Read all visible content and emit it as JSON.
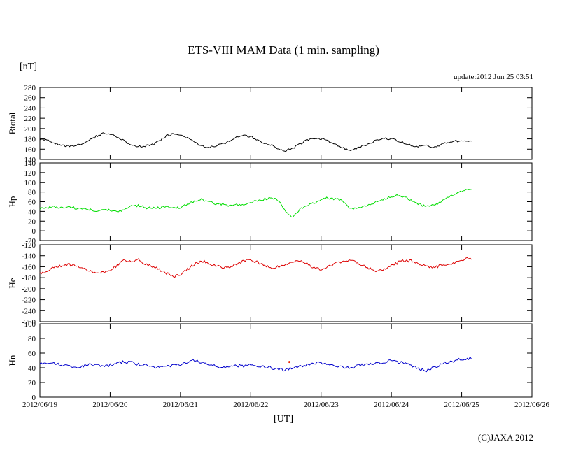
{
  "chart_data": {
    "type": "line",
    "title": "ETS-VIII MAM Data (1 min. sampling)",
    "unit_label": "[nT]",
    "update_label": "update:2012 Jun 25 03:51",
    "xlabel": "[UT]",
    "copyright": "(C)JAXA 2012",
    "x_tick_labels": [
      "2012/06/19",
      "2012/06/20",
      "2012/06/21",
      "2012/06/22",
      "2012/06/23",
      "2012/06/24",
      "2012/06/25",
      "2012/06/26"
    ],
    "x_range_days": [
      0,
      7
    ],
    "data_end_day": 6.15,
    "sample_step_days": 0.1,
    "legend": "off",
    "grid": "off",
    "panels": [
      {
        "name": "Btotal",
        "color": "#000000",
        "ylim": [
          140,
          280
        ],
        "ytick_step": 20,
        "noise": 2.0,
        "values": [
          180,
          177,
          172,
          168,
          166,
          167,
          170,
          176,
          185,
          190,
          189,
          184,
          176,
          168,
          165,
          166,
          169,
          175,
          186,
          190,
          187,
          181,
          173,
          167,
          164,
          166,
          170,
          176,
          184,
          187,
          184,
          178,
          172,
          168,
          160,
          157,
          162,
          170,
          178,
          181,
          180,
          176,
          170,
          163,
          158,
          161,
          166,
          172,
          178,
          181,
          180,
          176,
          171,
          167,
          165,
          166,
          164,
          168,
          173,
          176,
          175,
          176
        ]
      },
      {
        "name": "Hp",
        "color": "#00dd00",
        "ylim": [
          -20,
          140
        ],
        "ytick_step": 20,
        "noise": 2.5,
        "values": [
          45,
          48,
          50,
          48,
          50,
          47,
          45,
          44,
          42,
          44,
          42,
          40,
          44,
          50,
          52,
          48,
          46,
          48,
          50,
          46,
          48,
          55,
          62,
          65,
          60,
          56,
          55,
          52,
          55,
          53,
          58,
          62,
          66,
          68,
          62,
          40,
          28,
          45,
          52,
          58,
          64,
          68,
          66,
          62,
          45,
          48,
          50,
          55,
          60,
          65,
          70,
          73,
          70,
          62,
          55,
          50,
          53,
          60,
          68,
          75,
          82,
          85
        ]
      },
      {
        "name": "He",
        "color": "#dd0000",
        "ylim": [
          -260,
          -120
        ],
        "ytick_step": 20,
        "noise": 2.5,
        "values": [
          -172,
          -168,
          -162,
          -158,
          -156,
          -158,
          -162,
          -168,
          -172,
          -170,
          -165,
          -158,
          -148,
          -152,
          -146,
          -155,
          -160,
          -165,
          -172,
          -178,
          -175,
          -165,
          -155,
          -150,
          -153,
          -158,
          -162,
          -160,
          -155,
          -150,
          -148,
          -152,
          -158,
          -162,
          -160,
          -155,
          -150,
          -148,
          -155,
          -162,
          -165,
          -160,
          -155,
          -150,
          -148,
          -152,
          -158,
          -163,
          -168,
          -165,
          -158,
          -152,
          -148,
          -150,
          -155,
          -160,
          -162,
          -158,
          -155,
          -152,
          -148,
          -145
        ]
      },
      {
        "name": "Hn",
        "color": "#0000cc",
        "ylim": [
          0,
          100
        ],
        "ytick_step": 20,
        "noise": 2.0,
        "values": [
          45,
          46,
          47,
          44,
          42,
          40,
          42,
          44,
          43,
          42,
          44,
          46,
          48,
          47,
          45,
          43,
          41,
          40,
          42,
          44,
          45,
          48,
          50,
          47,
          44,
          42,
          40,
          41,
          43,
          42,
          44,
          43,
          42,
          40,
          38,
          37,
          40,
          42,
          44,
          46,
          47,
          45,
          43,
          41,
          40,
          42,
          44,
          45,
          46,
          48,
          50,
          48,
          45,
          42,
          38,
          36,
          40,
          44,
          48,
          50,
          52,
          53
        ]
      }
    ],
    "stray_points": [
      {
        "panel": "Hn",
        "day": 3.55,
        "value": 48,
        "color": "#ee2200"
      }
    ]
  }
}
